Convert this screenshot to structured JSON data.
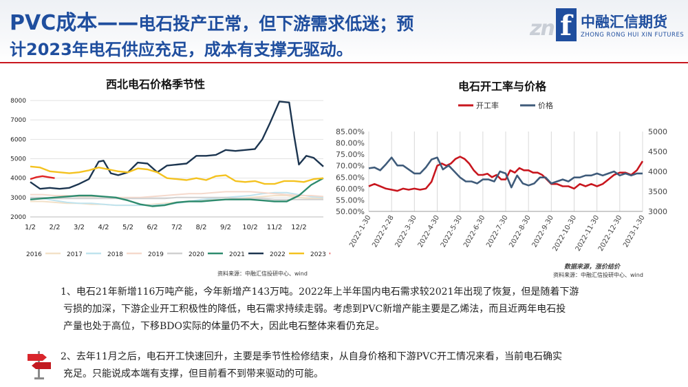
{
  "header": {
    "title_prefix": "PVC成本——",
    "title_rest": "电石投产正常，但下游需求低迷；预",
    "title_line2": "计2023年电石供应充足，成本有支撑无驱动。",
    "logo_cn": "中融汇信期货",
    "logo_en": "ZHONG RONG HUI XIN FUTURES",
    "logo_mark": "zn",
    "logo_glyph": "f",
    "brand_color": "#1f4e9e",
    "accent_color": "#c8161e"
  },
  "left_chart": {
    "title": "西北电石价格季节性",
    "source": "资料来源：中融汇信投研中心、wind"
  },
  "right_chart": {
    "title": "电石开工率与价格",
    "source": "资料来源：中融汇信投研中心、wind",
    "source_stamp": "数据来源，涨价结价"
  },
  "chart_data": [
    {
      "type": "line",
      "title": "西北电石价格季节性",
      "x_ticks": [
        "1/2",
        "2/2",
        "3/2",
        "4/2",
        "5/2",
        "6/2",
        "7/2",
        "8/2",
        "9/2",
        "10/2",
        "11/2",
        "12/2"
      ],
      "y_ticks": [
        2000,
        3000,
        4000,
        5000,
        6000,
        7000,
        8000
      ],
      "ylim": [
        2000,
        8000
      ],
      "xlim": [
        0,
        12
      ],
      "grid": "horizontal",
      "legend_position": "bottom",
      "series": [
        {
          "name": "2016",
          "color": "#f3e1c8",
          "x": [
            0,
            0.5,
            1,
            1.5,
            2,
            2.5,
            3,
            3.5,
            4,
            4.5,
            5,
            5.5,
            6,
            6.5,
            7,
            7.5,
            8,
            8.5,
            9,
            9.5,
            10,
            10.5,
            11,
            11.5,
            12
          ],
          "y": [
            2800,
            2800,
            2750,
            2700,
            2700,
            2650,
            2650,
            2600,
            2600,
            2600,
            2650,
            2700,
            2750,
            2800,
            2850,
            2900,
            2900,
            2950,
            3000,
            3050,
            3100,
            3100,
            3000,
            2950,
            2950
          ]
        },
        {
          "name": "2017",
          "color": "#bfe3ee",
          "x": [
            0,
            0.5,
            1,
            1.5,
            2,
            2.5,
            3,
            3.5,
            4,
            4.5,
            5,
            5.5,
            6,
            6.5,
            7,
            7.5,
            8,
            8.5,
            9,
            9.5,
            10,
            10.5,
            11,
            11.5,
            12
          ],
          "y": [
            2950,
            2950,
            2850,
            2750,
            2700,
            2700,
            2650,
            2600,
            2600,
            2600,
            2600,
            2650,
            2700,
            2800,
            2900,
            2950,
            3000,
            3050,
            3100,
            3200,
            3250,
            3250,
            3150,
            3050,
            3000
          ]
        },
        {
          "name": "2018",
          "color": "#f5d9cc",
          "x": [
            0,
            0.5,
            1,
            1.5,
            2,
            2.5,
            3,
            3.5,
            4,
            4.5,
            5,
            5.5,
            6,
            6.5,
            7,
            7.5,
            8,
            8.5,
            9,
            9.5,
            10,
            10.5,
            11,
            11.5,
            12
          ],
          "y": [
            3150,
            3150,
            3100,
            3100,
            3050,
            3050,
            3050,
            3000,
            3000,
            3000,
            3050,
            3100,
            3150,
            3200,
            3200,
            3250,
            3300,
            3300,
            3300,
            3250,
            3200,
            3150,
            3100,
            3100,
            3050
          ]
        },
        {
          "name": "2019",
          "color": "#d0d0d0",
          "x": [
            0,
            0.5,
            1,
            1.5,
            2,
            2.5,
            3,
            3.5,
            4,
            4.5,
            5,
            5.5,
            6,
            6.5,
            7,
            7.5,
            8,
            8.5,
            9,
            9.5,
            10,
            10.5,
            11,
            11.5,
            12
          ],
          "y": [
            3000,
            3000,
            2950,
            2950,
            2950,
            2950,
            2950,
            2950,
            2950,
            2950,
            2950,
            2950,
            3000,
            3000,
            3000,
            3000,
            3000,
            2950,
            2950,
            2950,
            2900,
            2900,
            2900,
            2900,
            2900
          ]
        },
        {
          "name": "2020",
          "color": "#2e8b6e",
          "x": [
            0,
            0.5,
            1,
            1.5,
            2,
            2.5,
            3,
            3.5,
            4,
            4.5,
            5,
            5.5,
            6,
            6.5,
            7,
            7.5,
            8,
            8.5,
            9,
            9.5,
            10,
            10.5,
            11,
            11.5,
            12
          ],
          "y": [
            2900,
            2950,
            3000,
            3050,
            3100,
            3100,
            3050,
            3000,
            2850,
            2650,
            2550,
            2600,
            2750,
            2800,
            2800,
            2850,
            2900,
            2900,
            2900,
            2850,
            2800,
            2800,
            3100,
            3650,
            4000
          ]
        },
        {
          "name": "2021",
          "color": "#1c3550",
          "x": [
            0,
            0.4,
            0.8,
            1.2,
            1.6,
            2,
            2.4,
            2.8,
            3,
            3.3,
            3.6,
            4,
            4.4,
            4.8,
            5.2,
            5.6,
            6,
            6.4,
            6.8,
            7.2,
            7.6,
            8,
            8.4,
            8.8,
            9.2,
            9.5,
            9.8,
            10.2,
            10.6,
            10.8,
            11,
            11.3,
            11.6,
            12
          ],
          "y": [
            3800,
            3450,
            3500,
            3450,
            3500,
            3700,
            3950,
            4850,
            4900,
            4250,
            4150,
            4300,
            4800,
            4750,
            4300,
            4650,
            4700,
            4750,
            5150,
            5150,
            5200,
            5450,
            5400,
            5450,
            5500,
            6000,
            6800,
            7950,
            7900,
            6200,
            4700,
            5150,
            5050,
            4600
          ]
        },
        {
          "name": "2022",
          "color": "#f4c21f",
          "x": [
            0,
            0.4,
            0.8,
            1.2,
            1.6,
            2,
            2.4,
            2.8,
            3.2,
            3.6,
            4,
            4.4,
            4.8,
            5.2,
            5.6,
            6,
            6.4,
            6.8,
            7.2,
            7.6,
            8,
            8.4,
            8.8,
            9.2,
            9.6,
            10,
            10.4,
            10.8,
            11.2,
            11.6,
            12
          ],
          "y": [
            4600,
            4550,
            4350,
            4300,
            4250,
            4300,
            4400,
            4550,
            4450,
            4350,
            4300,
            4500,
            4450,
            4300,
            4000,
            3950,
            3900,
            4000,
            3900,
            4100,
            4150,
            3850,
            3800,
            3850,
            3700,
            3700,
            3850,
            3850,
            3800,
            3950,
            4000
          ]
        },
        {
          "name": "2023",
          "color": "#e02424",
          "x": [
            0,
            0.25,
            0.5,
            0.75,
            1
          ],
          "y": [
            3950,
            4050,
            4100,
            4050,
            4000
          ]
        }
      ]
    },
    {
      "type": "line",
      "title": "电石开工率与价格",
      "x_ticks": [
        "2022-1-30",
        "2022-2-28",
        "2022-3-30",
        "2022-4-30",
        "2022-5-30",
        "2022-6-30",
        "2022-7-30",
        "2022-8-30",
        "2022-9-30",
        "2022-10-30",
        "2022-11-30",
        "2022-12-30",
        "2023-1-30"
      ],
      "y_left_ticks": [
        "50.00%",
        "55.00%",
        "60.00%",
        "65.00%",
        "70.00%",
        "75.00%",
        "80.00%",
        "85.00%"
      ],
      "y_left_lim": [
        50,
        85
      ],
      "y_right_ticks": [
        3000,
        3500,
        4000,
        4500,
        5000
      ],
      "y_right_lim": [
        3000,
        5000
      ],
      "xlim": [
        0,
        12
      ],
      "grid": "vertical",
      "legend_position": "top",
      "series": [
        {
          "name": "开工率",
          "color": "#c8161e",
          "axis": "left",
          "x": [
            0,
            0.25,
            0.5,
            0.75,
            1,
            1.25,
            1.5,
            1.75,
            2,
            2.25,
            2.5,
            2.75,
            3,
            3.2,
            3.4,
            3.6,
            3.8,
            4,
            4.2,
            4.4,
            4.6,
            4.8,
            5,
            5.2,
            5.4,
            5.6,
            5.8,
            6,
            6.2,
            6.4,
            6.6,
            6.8,
            7,
            7.2,
            7.4,
            7.6,
            7.8,
            8,
            8.25,
            8.5,
            8.75,
            9,
            9.25,
            9.5,
            9.75,
            10,
            10.25,
            10.5,
            10.75,
            11,
            11.25,
            11.5,
            11.75,
            12
          ],
          "y": [
            61,
            62,
            61,
            60,
            59.5,
            59,
            60,
            59.5,
            60,
            59.5,
            60,
            63,
            70,
            71,
            70,
            71,
            73,
            74,
            73,
            71,
            68,
            66,
            66,
            66.5,
            65,
            66,
            64,
            64,
            68,
            67,
            69,
            68,
            68,
            67,
            67,
            66,
            64,
            62,
            62,
            61,
            61,
            60,
            62,
            61,
            62,
            61,
            62,
            64,
            66,
            67,
            67,
            66,
            68,
            72
          ]
        },
        {
          "name": "价格",
          "color": "#3f5b7a",
          "axis": "right",
          "x": [
            0,
            0.25,
            0.5,
            0.75,
            1,
            1.25,
            1.5,
            1.75,
            2,
            2.25,
            2.5,
            2.75,
            3,
            3.25,
            3.5,
            3.75,
            4,
            4.25,
            4.5,
            4.75,
            5,
            5.25,
            5.5,
            5.75,
            6,
            6.25,
            6.5,
            6.75,
            7,
            7.25,
            7.5,
            7.75,
            8,
            8.25,
            8.5,
            8.75,
            9,
            9.25,
            9.5,
            9.75,
            10,
            10.25,
            10.5,
            10.75,
            11,
            11.25,
            11.5,
            11.75,
            12
          ],
          "y": [
            4080,
            4100,
            4030,
            4180,
            4350,
            4150,
            4150,
            4050,
            3950,
            3950,
            4100,
            4300,
            4350,
            4050,
            4150,
            4000,
            3850,
            3750,
            3750,
            3700,
            3800,
            3800,
            3750,
            4000,
            3950,
            3600,
            3900,
            3700,
            3650,
            3700,
            3850,
            3850,
            3700,
            3750,
            3800,
            3750,
            3850,
            3850,
            3900,
            3900,
            3950,
            3900,
            3950,
            4000,
            3900,
            3950,
            3900,
            3950,
            3950
          ]
        }
      ]
    }
  ],
  "body": {
    "p1_line1": "1、电石21年新增116万吨产能，今年新增产143万吨。2022年上半年国内电石需求较2021年出现了恢复，但是随着下游",
    "p1_line2": "亏损的加深，下游企业开工积极性的降低，电石需求持续走弱。考虑到PVC新增产能主要是乙烯法，而且近两年电石投",
    "p1_line3": "产量也处于高位，下移BDO实际的体量仍不大，因此电石整体来看仍充足。",
    "p2_line1": "2、去年11月之后，电石开工快速回升，主要是季节性检修结束，从自身价格和下游PVC开工情况来看，当前电石确实",
    "p2_line2": "充足。只能说成本端有支撑，但目前看不到带来驱动的可能。"
  },
  "icons": {
    "signpost": "signpost-icon"
  }
}
